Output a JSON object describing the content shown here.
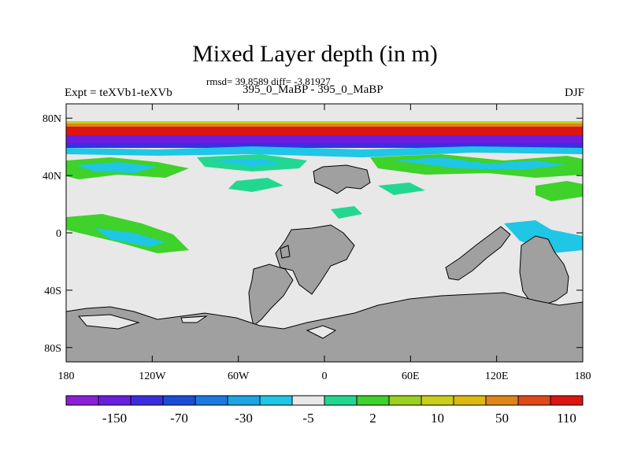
{
  "title": "Mixed Layer depth (in m)",
  "stats": "rmsd= 39.8589 diff= -3.81927",
  "experiment": "Expt = teXVb1-teXVb",
  "comparison": "395_0_MaBP - 395_0_MaBP",
  "season": "DJF",
  "map": {
    "lon_ticks": [
      "180",
      "120W",
      "60W",
      "0",
      "60E",
      "120E",
      "180"
    ],
    "lat_ticks": [
      "80N",
      "40N",
      "0",
      "40S",
      "80S"
    ],
    "land_color": "#a0a0a0",
    "background_color": "#e8e8e8"
  },
  "colorbar": {
    "labels": [
      "-150",
      "-70",
      "-30",
      "-5",
      "2",
      "10",
      "50",
      "110"
    ],
    "colors": [
      "#8a1fd8",
      "#6a1ee0",
      "#3a2ee0",
      "#1a4ed8",
      "#1a7ae0",
      "#1ca4e4",
      "#1fc6e6",
      "#e8e8e8",
      "#22d890",
      "#3ed22a",
      "#9ad01e",
      "#c8ce1a",
      "#ddb810",
      "#e0841a",
      "#e0481a",
      "#dd1414"
    ]
  }
}
